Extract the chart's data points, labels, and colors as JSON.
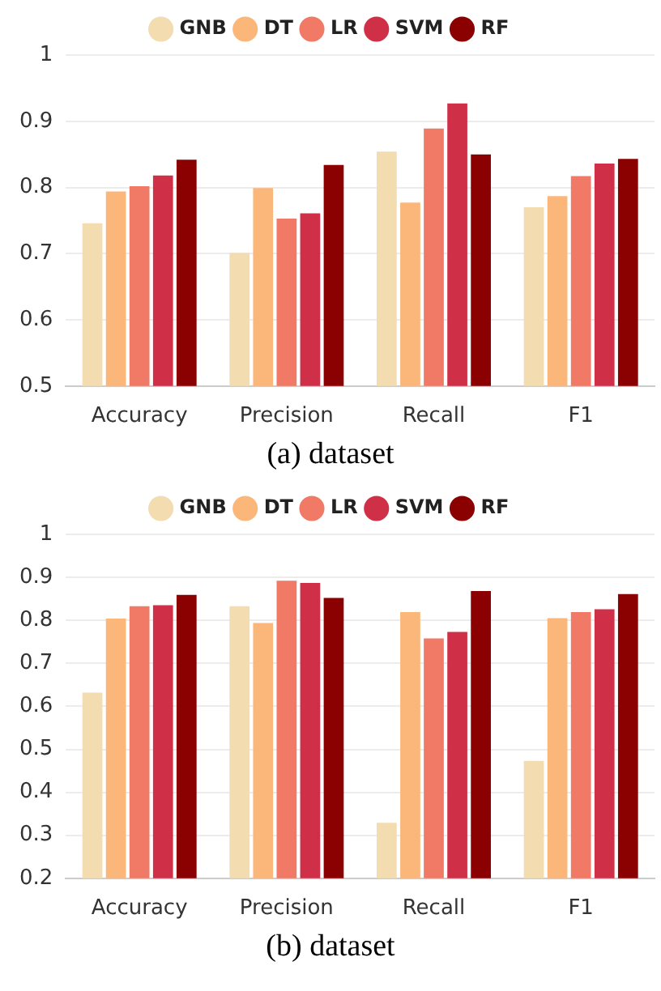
{
  "chart_data": [
    {
      "type": "bar",
      "categories": [
        "Accuracy",
        "Precision",
        "Recall",
        "F1"
      ],
      "ylim": [
        0.5,
        1
      ],
      "yticks": [
        0.5,
        0.6,
        0.7,
        0.8,
        0.9,
        1
      ],
      "grid": "y",
      "legend": "top",
      "series": [
        {
          "name": "GNB",
          "color": "#f3dcb0",
          "values": [
            0.746,
            0.701,
            0.854,
            0.77
          ]
        },
        {
          "name": "DT",
          "color": "#fbb67a",
          "values": [
            0.794,
            0.799,
            0.777,
            0.787
          ]
        },
        {
          "name": "LR",
          "color": "#f07a65",
          "values": [
            0.802,
            0.753,
            0.889,
            0.817
          ]
        },
        {
          "name": "SVM",
          "color": "#cf3048",
          "values": [
            0.818,
            0.761,
            0.927,
            0.836
          ]
        },
        {
          "name": "RF",
          "color": "#8b0000",
          "values": [
            0.842,
            0.834,
            0.85,
            0.843
          ]
        }
      ],
      "annotations": [
        "(a) dataset"
      ]
    },
    {
      "type": "bar",
      "categories": [
        "Accuracy",
        "Precision",
        "Recall",
        "F1"
      ],
      "ylim": [
        0.2,
        1
      ],
      "yticks": [
        0.2,
        0.3,
        0.4,
        0.5,
        0.6,
        0.7,
        0.8,
        0.9,
        1
      ],
      "grid": "y",
      "legend": "top",
      "series": [
        {
          "name": "GNB",
          "color": "#f3dcb0",
          "values": [
            0.632,
            0.833,
            0.329,
            0.473
          ]
        },
        {
          "name": "DT",
          "color": "#fbb67a",
          "values": [
            0.804,
            0.794,
            0.819,
            0.805
          ]
        },
        {
          "name": "LR",
          "color": "#f07a65",
          "values": [
            0.833,
            0.892,
            0.758,
            0.819
          ]
        },
        {
          "name": "SVM",
          "color": "#cf3048",
          "values": [
            0.835,
            0.887,
            0.773,
            0.826
          ]
        },
        {
          "name": "RF",
          "color": "#8b0000",
          "values": [
            0.859,
            0.852,
            0.868,
            0.861
          ]
        }
      ],
      "annotations": [
        "(b) dataset"
      ]
    }
  ]
}
